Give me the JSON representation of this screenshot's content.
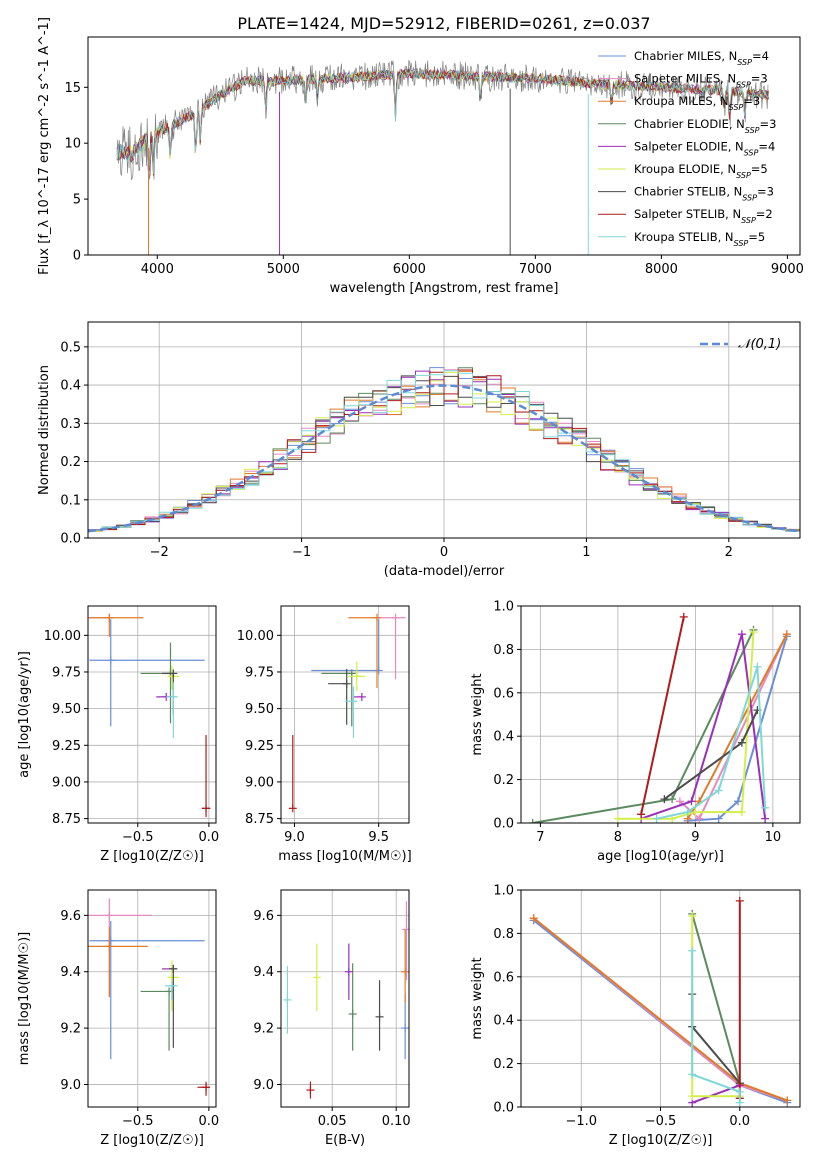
{
  "figure": {
    "title": "PLATE=1424, MJD=52912, FIBERID=0261, z=0.037"
  },
  "models": [
    {
      "base": "Chabrier MILES",
      "nssp": "4",
      "color": "#6a8fd8"
    },
    {
      "base": "Salpeter MILES",
      "nssp": "3",
      "color": "#e48ac2"
    },
    {
      "base": "Kroupa MILES",
      "nssp": "3",
      "color": "#e07b2a"
    },
    {
      "base": "Chabrier ELODIE",
      "nssp": "3",
      "color": "#5a8a5e"
    },
    {
      "base": "Salpeter ELODIE",
      "nssp": "4",
      "color": "#9a2fb8"
    },
    {
      "base": "Kroupa ELODIE",
      "nssp": "5",
      "color": "#d4ee4c"
    },
    {
      "base": "Chabrier STELIB",
      "nssp": "3",
      "color": "#4c4c4c"
    },
    {
      "base": "Salpeter STELIB",
      "nssp": "2",
      "color": "#b01a1a"
    },
    {
      "base": "Kroupa STELIB",
      "nssp": "5",
      "color": "#7fd8d8"
    }
  ],
  "chart_data": [
    {
      "id": "spectrum",
      "type": "line",
      "title": "PLATE=1424, MJD=52912, FIBERID=0261, z=0.037",
      "xlabel": "wavelength [Angstrom, rest frame]",
      "ylabel": "Flux [f_λ 10^-17 erg cm^-2 s^-1 A^-1]",
      "xlim": [
        3450,
        9100
      ],
      "ylim": [
        0,
        19.5
      ],
      "xticks": [
        4000,
        5000,
        6000,
        7000,
        8000,
        9000
      ],
      "yticks": [
        0,
        5,
        10,
        15
      ],
      "grid": false,
      "legend_position": "top-right",
      "continuum_knots": [
        [
          3680,
          9.2
        ],
        [
          3800,
          9.0
        ],
        [
          3950,
          10.8
        ],
        [
          4100,
          11.5
        ],
        [
          4300,
          12.7
        ],
        [
          4500,
          14.3
        ],
        [
          4700,
          15.6
        ],
        [
          5000,
          15.6
        ],
        [
          5500,
          15.9
        ],
        [
          6000,
          16.2
        ],
        [
          6500,
          16.0
        ],
        [
          7000,
          15.8
        ],
        [
          7500,
          15.3
        ],
        [
          8000,
          15.0
        ],
        [
          8500,
          14.7
        ],
        [
          8850,
          14.3
        ]
      ],
      "absorption_lines": [
        [
          3934,
          3.6
        ],
        [
          3968,
          3.2
        ],
        [
          4102,
          2.6
        ],
        [
          4304,
          4.0
        ],
        [
          4340,
          2.8
        ],
        [
          4861,
          2.7
        ],
        [
          5175,
          2.4
        ],
        [
          5270,
          1.5
        ],
        [
          5890,
          3.8
        ],
        [
          6563,
          2.0
        ],
        [
          7605,
          1.8
        ],
        [
          8498,
          1.5
        ],
        [
          8542,
          2.2
        ],
        [
          8662,
          2.0
        ]
      ],
      "spikes_to_zero": [
        3930,
        4970,
        6800,
        7420
      ]
    },
    {
      "id": "residuals",
      "type": "histogram",
      "xlabel": "(data-model)/error",
      "ylabel": "Normed distribution",
      "xlim": [
        -2.5,
        2.5
      ],
      "ylim": [
        0,
        0.565
      ],
      "xticks": [
        -2,
        -1,
        0,
        1,
        2
      ],
      "yticks": [
        0.0,
        0.1,
        0.2,
        0.3,
        0.4,
        0.5
      ],
      "grid": true,
      "bin_width": 0.1,
      "reference_label": "𝒩(0,1)",
      "reference_color": "#5b8bd6",
      "legend_position": "top-right"
    },
    {
      "id": "age_vs_Z",
      "type": "errorbar",
      "xlabel": "Z [log10(Z/Z☉)]",
      "ylabel": "age [log10(age/yr)]",
      "xlim": [
        -0.85,
        0.05
      ],
      "ylim": [
        8.72,
        10.2
      ],
      "xticks": [
        -0.5,
        0.0
      ],
      "yticks": [
        8.75,
        9.0,
        9.25,
        9.5,
        9.75,
        10.0
      ],
      "grid": true,
      "points": [
        {
          "model": 0,
          "x": -0.69,
          "y": 9.83,
          "xerr": [
            0.15,
            0.66
          ],
          "yerr": [
            0.45,
            0.28
          ]
        },
        {
          "model": 1,
          "x": -0.7,
          "y": 10.12,
          "xerr": [
            0.17,
            0.0
          ],
          "yerr": [
            0.0,
            0.0
          ]
        },
        {
          "model": 2,
          "x": -0.7,
          "y": 10.12,
          "xerr": [
            0.14,
            0.24
          ],
          "yerr": [
            0.13,
            0.0
          ]
        },
        {
          "model": 3,
          "x": -0.27,
          "y": 9.74,
          "xerr": [
            0.21,
            0.03
          ],
          "yerr": [
            0.34,
            0.21
          ]
        },
        {
          "model": 4,
          "x": -0.3,
          "y": 9.58,
          "xerr": [
            0.07,
            0.06
          ],
          "yerr": [
            0.0,
            0.0
          ]
        },
        {
          "model": 5,
          "x": -0.26,
          "y": 9.72,
          "xerr": [
            0.03,
            0.05
          ],
          "yerr": [
            0.09,
            0.07
          ]
        },
        {
          "model": 6,
          "x": -0.25,
          "y": 9.74,
          "xerr": [
            0.08,
            0.0
          ],
          "yerr": [
            0.28,
            0.0
          ]
        },
        {
          "model": 7,
          "x": -0.02,
          "y": 8.82,
          "xerr": [
            0.03,
            0.03
          ],
          "yerr": [
            0.06,
            0.5
          ]
        },
        {
          "model": 8,
          "x": -0.25,
          "y": 9.58,
          "xerr": [
            0.05,
            0.03
          ],
          "yerr": [
            0.28,
            0.1
          ]
        }
      ]
    },
    {
      "id": "age_vs_mass",
      "type": "errorbar",
      "xlabel": "mass [log10(M/M☉)]",
      "ylabel": "",
      "xlim": [
        8.92,
        9.68
      ],
      "ylim": [
        8.72,
        10.2
      ],
      "xticks": [
        9.0,
        9.5
      ],
      "yticks": [
        8.75,
        9.0,
        9.25,
        9.5,
        9.75,
        10.0
      ],
      "grid": true,
      "points": [
        {
          "model": 0,
          "x": 9.5,
          "y": 9.76,
          "xerr": [
            0.4,
            0.0
          ],
          "yerr": [
            0.0,
            0.35
          ]
        },
        {
          "model": 1,
          "x": 9.6,
          "y": 10.12,
          "xerr": [
            0.1,
            0.06
          ],
          "yerr": [
            0.42,
            0.0
          ]
        },
        {
          "model": 2,
          "x": 9.49,
          "y": 10.12,
          "xerr": [
            0.17,
            0.0
          ],
          "yerr": [
            0.48,
            0.0
          ]
        },
        {
          "model": 3,
          "x": 9.34,
          "y": 9.74,
          "xerr": [
            0.18,
            0.0
          ],
          "yerr": [
            0.36,
            0.0
          ]
        },
        {
          "model": 4,
          "x": 9.4,
          "y": 9.58,
          "xerr": [
            0.05,
            0.0
          ],
          "yerr": [
            0.0,
            0.0
          ]
        },
        {
          "model": 5,
          "x": 9.37,
          "y": 9.72,
          "xerr": [
            0.05,
            0.05
          ],
          "yerr": [
            0.1,
            0.1
          ]
        },
        {
          "model": 6,
          "x": 9.31,
          "y": 9.67,
          "xerr": [
            0.11,
            0.0
          ],
          "yerr": [
            0.28,
            0.1
          ]
        },
        {
          "model": 7,
          "x": 8.99,
          "y": 8.82,
          "xerr": [
            0.0,
            0.0
          ],
          "yerr": [
            0.0,
            0.5
          ]
        },
        {
          "model": 8,
          "x": 9.35,
          "y": 9.55,
          "xerr": [
            0.05,
            0.02
          ],
          "yerr": [
            0.25,
            0.1
          ]
        }
      ]
    },
    {
      "id": "mass_vs_Z",
      "type": "errorbar",
      "xlabel": "Z [log10(Z/Z☉)]",
      "ylabel": "mass [log10(M/M☉)]",
      "xlim": [
        -0.85,
        0.05
      ],
      "ylim": [
        8.92,
        9.69
      ],
      "xticks": [
        -0.5,
        0.0
      ],
      "yticks": [
        9.0,
        9.2,
        9.4,
        9.6
      ],
      "grid": true,
      "points": [
        {
          "model": 0,
          "x": -0.69,
          "y": 9.51,
          "xerr": [
            0.15,
            0.66
          ],
          "yerr": [
            0.42,
            0.07
          ]
        },
        {
          "model": 1,
          "x": -0.7,
          "y": 9.6,
          "xerr": [
            0.15,
            0.3
          ],
          "yerr": [
            0.29,
            0.06
          ]
        },
        {
          "model": 2,
          "x": -0.7,
          "y": 9.49,
          "xerr": [
            0.17,
            0.27
          ],
          "yerr": [
            0.18,
            0.07
          ]
        },
        {
          "model": 3,
          "x": -0.28,
          "y": 9.33,
          "xerr": [
            0.2,
            0.03
          ],
          "yerr": [
            0.21,
            0.0
          ]
        },
        {
          "model": 4,
          "x": -0.25,
          "y": 9.41,
          "xerr": [
            0.08,
            0.02
          ],
          "yerr": [
            0.0,
            0.0
          ]
        },
        {
          "model": 5,
          "x": -0.26,
          "y": 9.38,
          "xerr": [
            0.03,
            0.05
          ],
          "yerr": [
            0.12,
            0.06
          ]
        },
        {
          "model": 6,
          "x": -0.25,
          "y": 9.41,
          "xerr": [
            0.03,
            0.0
          ],
          "yerr": [
            0.28,
            0.0
          ]
        },
        {
          "model": 7,
          "x": -0.02,
          "y": 8.99,
          "xerr": [
            0.06,
            0.02
          ],
          "yerr": [
            0.03,
            0.02
          ]
        },
        {
          "model": 8,
          "x": -0.26,
          "y": 9.35,
          "xerr": [
            0.05,
            0.04
          ],
          "yerr": [
            0.05,
            0.0
          ]
        }
      ]
    },
    {
      "id": "mass_vs_ebv",
      "type": "errorbar",
      "xlabel": "E(B-V)",
      "ylabel": "",
      "xlim": [
        0.01,
        0.11
      ],
      "ylim": [
        8.92,
        9.69
      ],
      "xticks": [
        0.0,
        0.05,
        0.1
      ],
      "yticks": [
        9.0,
        9.2,
        9.4,
        9.6
      ],
      "grid": true,
      "points": [
        {
          "model": 0,
          "x": 0.107,
          "y": 9.2,
          "xerr": [
            0.0,
            0.0
          ],
          "yerr": [
            0.11,
            0.12
          ]
        },
        {
          "model": 1,
          "x": 0.108,
          "y": 9.55,
          "xerr": [
            0.0,
            0.0
          ],
          "yerr": [
            0.18,
            0.1
          ]
        },
        {
          "model": 2,
          "x": 0.107,
          "y": 9.4,
          "xerr": [
            0.0,
            0.0
          ],
          "yerr": [
            0.11,
            0.15
          ]
        },
        {
          "model": 3,
          "x": 0.066,
          "y": 9.25,
          "xerr": [
            0.0,
            0.0
          ],
          "yerr": [
            0.13,
            0.18
          ]
        },
        {
          "model": 4,
          "x": 0.063,
          "y": 9.4,
          "xerr": [
            0.0,
            0.0
          ],
          "yerr": [
            0.1,
            0.1
          ]
        },
        {
          "model": 5,
          "x": 0.038,
          "y": 9.38,
          "xerr": [
            0.0,
            0.0
          ],
          "yerr": [
            0.12,
            0.12
          ]
        },
        {
          "model": 6,
          "x": 0.087,
          "y": 9.24,
          "xerr": [
            0.0,
            0.0
          ],
          "yerr": [
            0.12,
            0.13
          ]
        },
        {
          "model": 7,
          "x": 0.033,
          "y": 8.98,
          "xerr": [
            0.0,
            0.0
          ],
          "yerr": [
            0.03,
            0.03
          ]
        },
        {
          "model": 8,
          "x": 0.015,
          "y": 9.3,
          "xerr": [
            0.0,
            0.0
          ],
          "yerr": [
            0.12,
            0.12
          ]
        }
      ]
    },
    {
      "id": "weight_vs_age",
      "type": "line",
      "xlabel": "age [log10(age/yr)]",
      "ylabel": "mass weight",
      "xlim": [
        6.75,
        10.35
      ],
      "ylim": [
        0,
        1.0
      ],
      "xticks": [
        7,
        8,
        9,
        10
      ],
      "yticks": [
        0.0,
        0.2,
        0.4,
        0.6,
        0.8,
        1.0
      ],
      "grid": true,
      "series": [
        {
          "model": 0,
          "x": [
            8.9,
            9.3,
            9.55,
            10.18
          ],
          "y": [
            0.01,
            0.02,
            0.1,
            0.86
          ]
        },
        {
          "model": 1,
          "x": [
            8.8,
            9.05,
            10.18
          ],
          "y": [
            0.1,
            0.02,
            0.87
          ]
        },
        {
          "model": 2,
          "x": [
            8.9,
            9.05,
            10.18
          ],
          "y": [
            0.02,
            0.1,
            0.87
          ]
        },
        {
          "model": 3,
          "x": [
            6.9,
            8.7,
            9.75
          ],
          "y": [
            0.0,
            0.11,
            0.89
          ]
        },
        {
          "model": 4,
          "x": [
            8.3,
            8.95,
            9.6,
            9.9
          ],
          "y": [
            0.02,
            0.1,
            0.87,
            0.02
          ]
        },
        {
          "model": 5,
          "x": [
            8.0,
            8.7,
            9.0,
            9.6,
            9.75
          ],
          "y": [
            0.02,
            0.02,
            0.05,
            0.05,
            0.88
          ]
        },
        {
          "model": 6,
          "x": [
            8.6,
            9.6,
            9.8
          ],
          "y": [
            0.11,
            0.37,
            0.52
          ]
        },
        {
          "model": 7,
          "x": [
            8.3,
            8.85
          ],
          "y": [
            0.04,
            0.95
          ]
        },
        {
          "model": 8,
          "x": [
            8.5,
            8.9,
            9.3,
            9.8,
            9.9
          ],
          "y": [
            0.02,
            0.05,
            0.15,
            0.72,
            0.07
          ]
        }
      ]
    },
    {
      "id": "weight_vs_Z",
      "type": "line",
      "xlabel": "Z [log10(Z/Z☉)]",
      "ylabel": "mass weight",
      "xlim": [
        -1.38,
        0.38
      ],
      "ylim": [
        0,
        1.0
      ],
      "xticks": [
        -1.0,
        -0.5,
        0.0
      ],
      "yticks": [
        0.0,
        0.2,
        0.4,
        0.6,
        0.8,
        1.0
      ],
      "grid": true,
      "series": [
        {
          "model": 0,
          "x": [
            -1.3,
            0.0,
            0.3
          ],
          "y": [
            0.86,
            0.1,
            0.02
          ]
        },
        {
          "model": 1,
          "x": [
            -1.3,
            0.0,
            0.3
          ],
          "y": [
            0.87,
            0.1,
            0.03
          ]
        },
        {
          "model": 2,
          "x": [
            -1.3,
            0.0,
            0.3
          ],
          "y": [
            0.87,
            0.11,
            0.03
          ]
        },
        {
          "model": 3,
          "x": [
            -0.3,
            0.0
          ],
          "y": [
            0.89,
            0.11
          ]
        },
        {
          "model": 4,
          "x": [
            -0.3,
            0.0
          ],
          "y": [
            0.02,
            0.1
          ]
        },
        {
          "model": 5,
          "x": [
            -0.3,
            -0.3,
            0.0
          ],
          "y": [
            0.88,
            0.05,
            0.05
          ]
        },
        {
          "model": 6,
          "x": [
            -0.3,
            -0.3,
            0.0
          ],
          "y": [
            0.52,
            0.37,
            0.11
          ]
        },
        {
          "model": 7,
          "x": [
            0.0,
            0.0
          ],
          "y": [
            0.95,
            0.04
          ]
        },
        {
          "model": 8,
          "x": [
            -0.3,
            -0.3,
            0.0,
            0.0
          ],
          "y": [
            0.72,
            0.15,
            0.07,
            0.02
          ]
        }
      ]
    }
  ]
}
